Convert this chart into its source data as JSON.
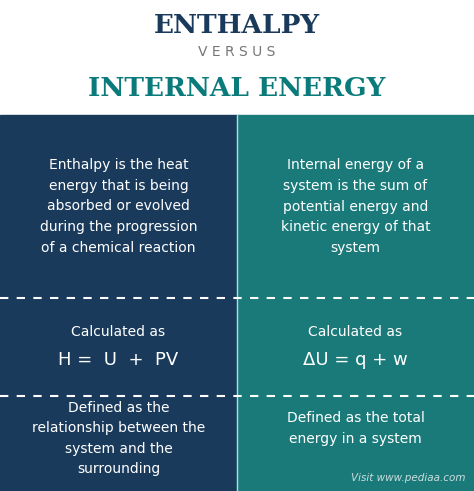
{
  "title1": "ENTHALPY",
  "versus": "V E R S U S",
  "title2": "INTERNAL ENERGY",
  "title1_color": "#1a3a5c",
  "versus_color": "#777777",
  "title2_color": "#0a7a7a",
  "left_bg": "#1a3a5c",
  "right_bg": "#1a7a7a",
  "text_color": "#ffffff",
  "header_bg": "#ffffff",
  "dashed_color": "#ffffff",
  "left_cell1": "Enthalpy is the heat\nenergy that is being\nabsorbed or evolved\nduring the progression\nof a chemical reaction",
  "right_cell1": "Internal energy of a\nsystem is the sum of\npotential energy and\nkinetic energy of that\nsystem",
  "left_label2": "Calculated as",
  "left_formula2": "H =  U  +  PV",
  "right_label2": "Calculated as",
  "right_formula2": "ΔU = q + w",
  "left_cell3": "Defined as the\nrelationship between the\nsystem and the\nsurrounding",
  "right_cell3": "Defined as the total\nenergy in a system",
  "watermark": "Visit www.pediaa.com"
}
